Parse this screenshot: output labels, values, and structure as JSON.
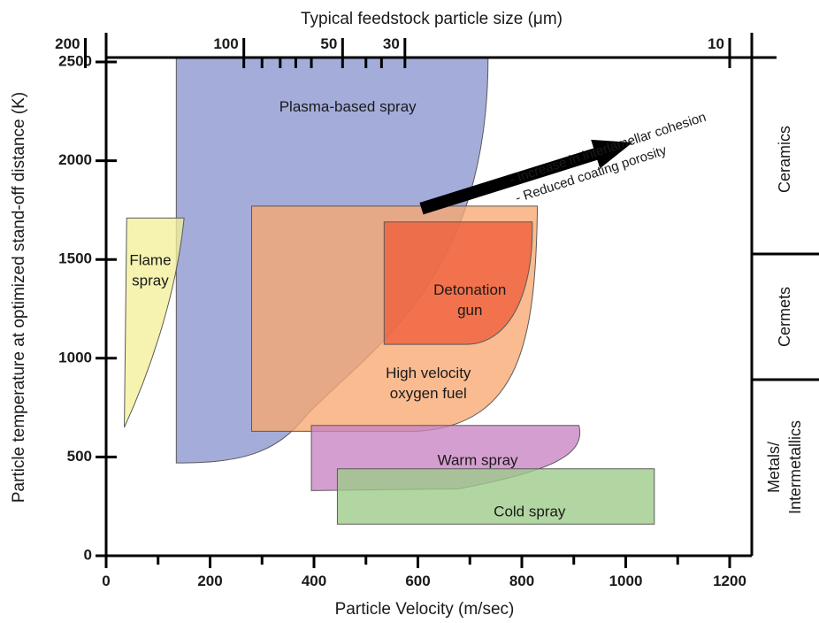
{
  "chart_data": {
    "type": "area",
    "xlabel": "Particle Velocity (m/sec)",
    "ylabel": "Particle temperature at optimized stand-off distance (K)",
    "top_xlabel": "Typical feedstock particle size (μm)",
    "xlim": [
      0,
      1240
    ],
    "ylim": [
      0,
      2550
    ],
    "x_ticks": [
      0,
      200,
      400,
      600,
      800,
      1000,
      1200
    ],
    "x_minor_ticks": [
      100,
      300,
      500,
      700,
      900,
      1100
    ],
    "y_ticks": [
      0,
      500,
      1000,
      1500,
      2000,
      2500
    ],
    "top_ticks": [
      {
        "label": "200",
        "velocity": -40
      },
      {
        "label": "100",
        "velocity": 265
      },
      {
        "label": "",
        "velocity": 300
      },
      {
        "label": "",
        "velocity": 335
      },
      {
        "label": "",
        "velocity": 365
      },
      {
        "label": "",
        "velocity": 395
      },
      {
        "label": "50",
        "velocity": 455
      },
      {
        "label": "",
        "velocity": 500
      },
      {
        "label": "",
        "velocity": 530
      },
      {
        "label": "30",
        "velocity": 575
      },
      {
        "label": "10",
        "velocity": 1200
      }
    ],
    "regions": [
      {
        "name": "Plasma-based spray",
        "color": "#8b95cf",
        "vel_min": 135,
        "vel_max": 735,
        "temp_min": 470,
        "temp_max": 2520,
        "label_lines": [
          "Plasma-based spray"
        ],
        "label_at": [
          465,
          2270
        ]
      },
      {
        "name": "Flame spray",
        "color": "#f4ef9a",
        "vel_min": 35,
        "vel_max": 150,
        "temp_min": 650,
        "temp_max": 1710,
        "label_lines": [
          "Flame",
          "spray"
        ],
        "label_at": [
          85,
          1440
        ]
      },
      {
        "name": "High velocity oxygen fuel",
        "color": "#f7a870",
        "vel_min": 280,
        "vel_max": 830,
        "temp_min": 630,
        "temp_max": 1770,
        "label_lines": [
          "High velocity",
          "oxygen fuel"
        ],
        "label_at": [
          620,
          870
        ]
      },
      {
        "name": "Detonation gun",
        "color": "#ee5d3a",
        "vel_min": 535,
        "vel_max": 820,
        "temp_min": 1070,
        "temp_max": 1690,
        "label_lines": [
          "Detonation",
          "gun"
        ],
        "label_at": [
          700,
          1290
        ]
      },
      {
        "name": "Warm spray",
        "color": "#c983c3",
        "vel_min": 395,
        "vel_max": 910,
        "temp_min": 330,
        "temp_max": 660,
        "label_lines": [
          "Warm spray"
        ],
        "label_at": [
          715,
          480
        ]
      },
      {
        "name": "Cold spray",
        "color": "#9ccb88",
        "vel_min": 445,
        "vel_max": 1055,
        "temp_min": 160,
        "temp_max": 440,
        "label_lines": [
          "Cold spray"
        ],
        "label_at": [
          815,
          220
        ]
      }
    ],
    "annotations": {
      "arrow_lines": [
        "- Increase in interlamellar cohesion",
        "- Reduced coating porosity"
      ],
      "arrow_from": [
        760,
        1780
      ],
      "arrow_to": [
        1020,
        2070
      ]
    },
    "materials": [
      "Ceramics",
      "Cermets",
      "Metals/",
      "Intermetallics"
    ]
  },
  "colors": {
    "axis": "#000000",
    "text": "#1a1a1a"
  }
}
